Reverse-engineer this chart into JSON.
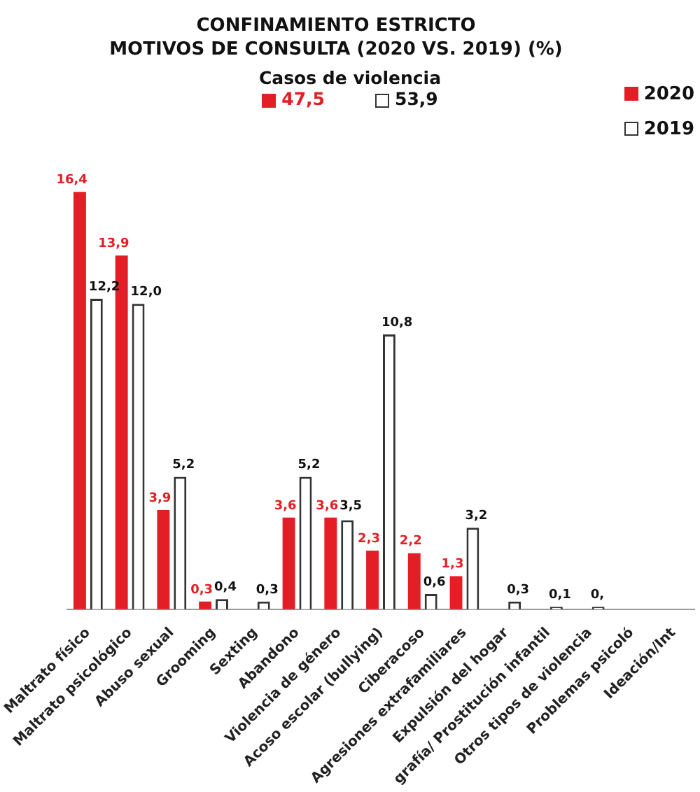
{
  "chart_data": {
    "type": "bar",
    "title": "CONFINAMIENTO ESTRICTO\nMOTIVOS DE CONSULTA (2020 VS. 2019) (%)",
    "categories": [
      "Maltrato físico",
      "Maltrato psicológico",
      "Abuso sexual",
      "Grooming",
      "Sexting",
      "Abandono",
      "Violencia de género",
      "Acoso escolar (bullying)",
      "Ciberacoso",
      "Agresiones extrafamiliares",
      "Expulsión del hogar",
      "grafía/ Prostitución infantil",
      "Otros tipos de violencia",
      "Problemas psicoló",
      "Ideación/Int"
    ],
    "series": [
      {
        "name": "2020",
        "color": "#e31e24",
        "values": [
          16.4,
          13.9,
          3.9,
          0.3,
          null,
          3.6,
          3.6,
          2.3,
          2.2,
          1.3,
          null,
          null,
          null,
          null,
          null
        ],
        "value_labels": [
          "16,4",
          "13,9",
          "3,9",
          "0,3",
          null,
          "3,6",
          "3,6",
          "2,3",
          "2,2",
          "1,3",
          null,
          null,
          null,
          null,
          null
        ]
      },
      {
        "name": "2019",
        "color": "#ffffff",
        "values": [
          12.2,
          12.0,
          5.2,
          0.4,
          0.3,
          5.2,
          3.5,
          10.8,
          0.6,
          3.2,
          0.3,
          0.1,
          0.1,
          null,
          null
        ],
        "value_labels": [
          "12,2",
          "12,0",
          "5,2",
          "0,4",
          "0,3",
          "5,2",
          "3,5",
          "10,8",
          "0,6",
          "3,2",
          "0,3",
          "0,1",
          "0,",
          null,
          null
        ]
      }
    ],
    "annotations": [
      "Casos de violencia",
      "47,5",
      "53,9"
    ],
    "legend": "top right",
    "relative": false
  }
}
